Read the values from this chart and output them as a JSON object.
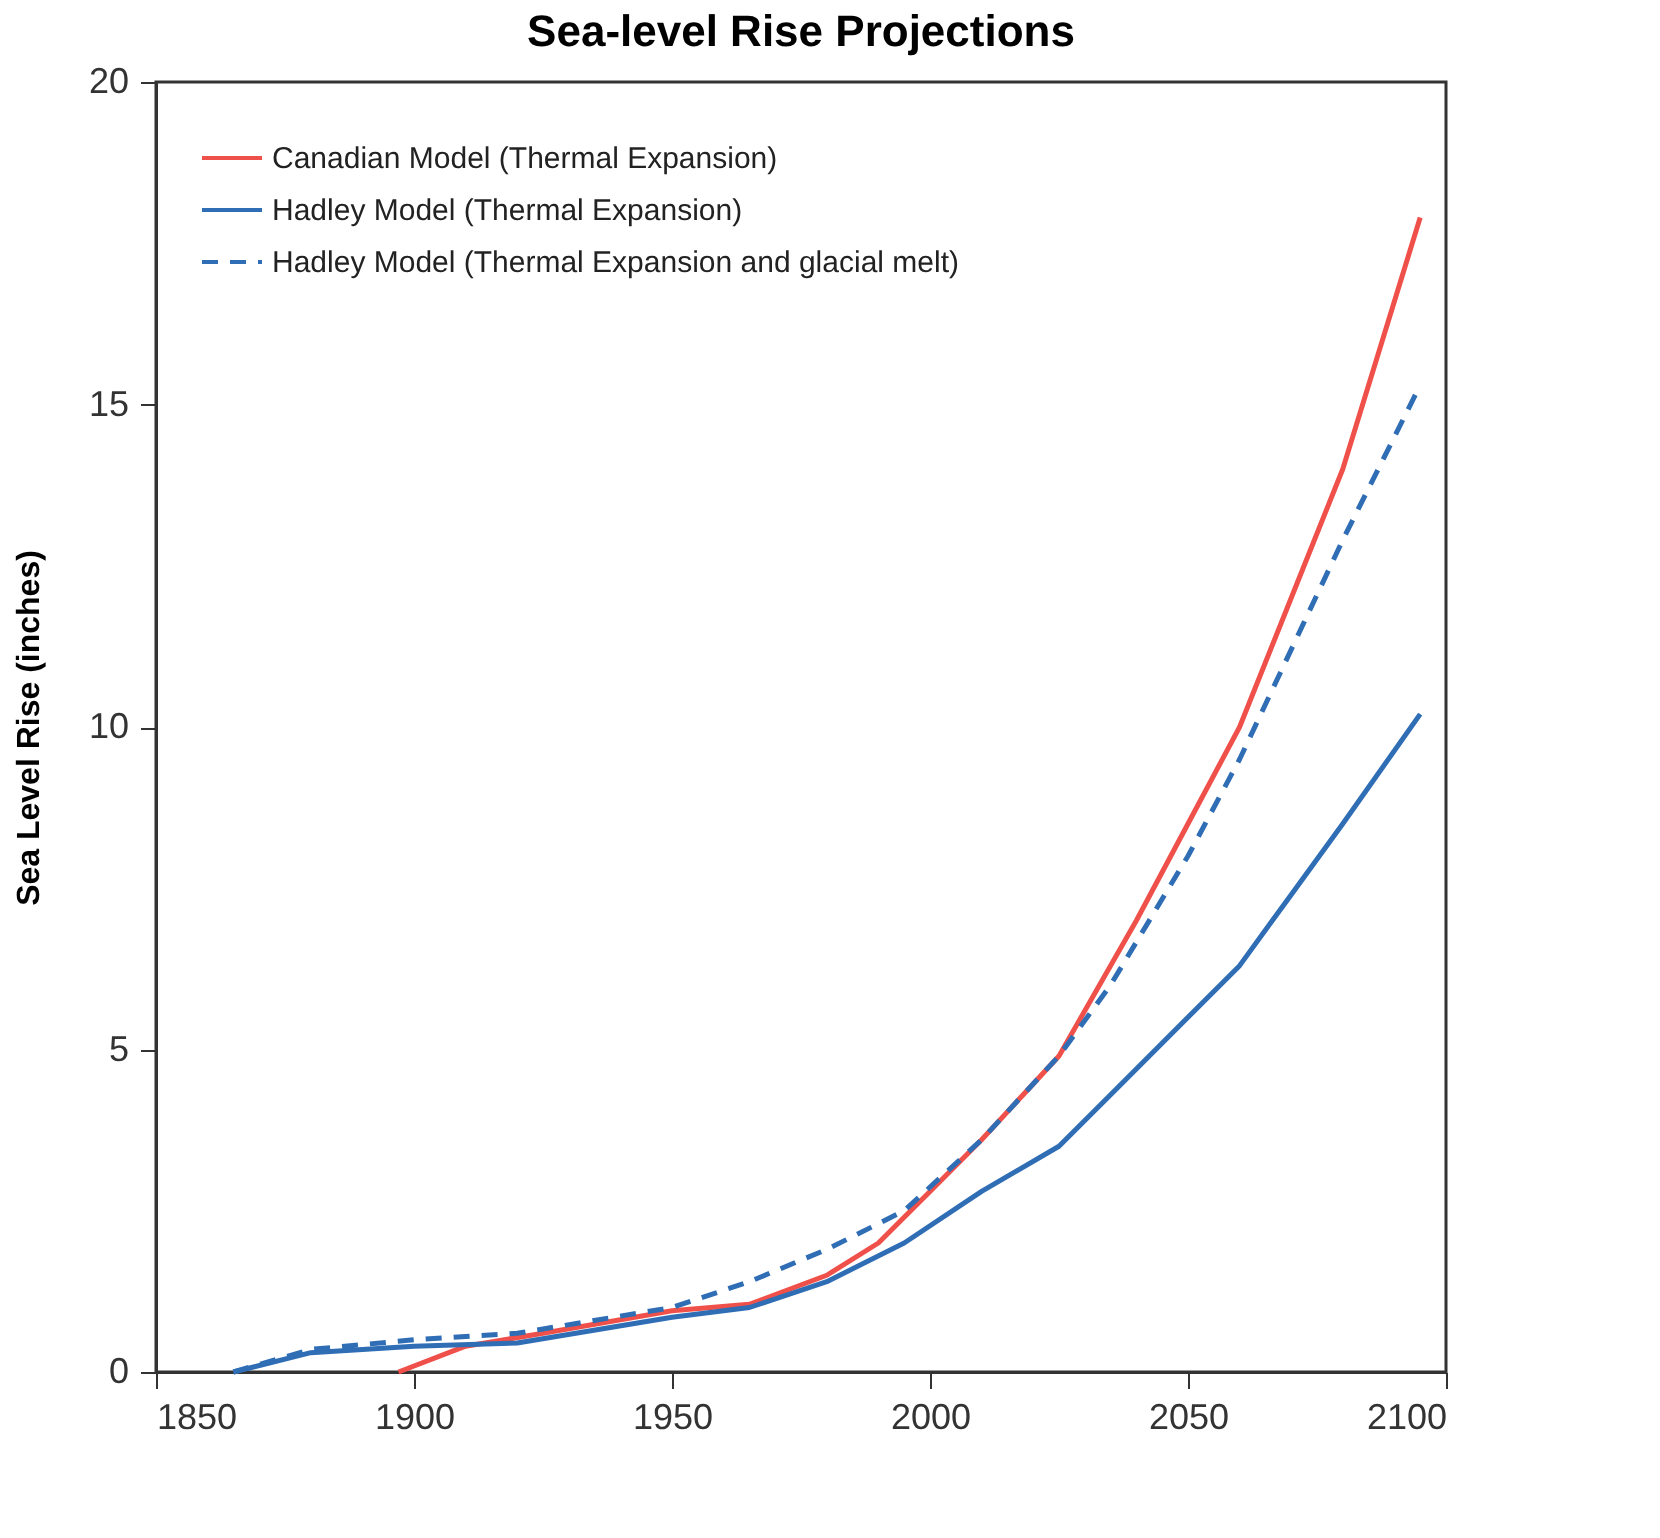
{
  "chart_data": {
    "type": "line",
    "title": "Sea-level Rise Projections",
    "ylabel": "Sea Level Rise (inches)",
    "xlim": [
      1850,
      2100
    ],
    "xticks": [
      1850,
      1900,
      1950,
      2000,
      2050,
      2100
    ],
    "ylim": [
      0,
      20
    ],
    "yticks": [
      0,
      5,
      10,
      15,
      20
    ],
    "grid": false,
    "legend": "top left",
    "marker": "none",
    "series": [
      {
        "name": "Canadian Model (Thermal Expansion)",
        "color": "#f0504a",
        "line_style": "solid",
        "x": [
          1897,
          1910,
          1925,
          1950,
          1965,
          1980,
          1990,
          2000,
          2010,
          2025,
          2040,
          2050,
          2060,
          2070,
          2080,
          2095
        ],
        "values": [
          0,
          0.4,
          0.6,
          0.95,
          1.05,
          1.5,
          2.0,
          2.8,
          3.6,
          4.9,
          7.0,
          8.5,
          10.0,
          12.0,
          14.0,
          17.9
        ]
      },
      {
        "name": "Hadley Model (Thermal Expansion)",
        "color": "#2f6db5",
        "line_style": "solid",
        "x": [
          1865,
          1880,
          1900,
          1920,
          1950,
          1965,
          1980,
          1995,
          2010,
          2025,
          2035,
          2050,
          2060,
          2070,
          2080,
          2095
        ],
        "values": [
          0,
          0.3,
          0.4,
          0.45,
          0.85,
          1.0,
          1.4,
          2.0,
          2.8,
          3.5,
          4.3,
          5.5,
          6.3,
          7.4,
          8.5,
          10.2
        ]
      },
      {
        "name": "Hadley Model (Thermal Expansion and glacial melt)",
        "color": "#2f6db5",
        "line_style": "dashed",
        "x": [
          1865,
          1880,
          1900,
          1920,
          1950,
          1965,
          1980,
          1995,
          2010,
          2025,
          2035,
          2050,
          2060,
          2070,
          2080,
          2095
        ],
        "values": [
          0,
          0.35,
          0.5,
          0.6,
          1.0,
          1.4,
          1.9,
          2.5,
          3.6,
          4.9,
          6.0,
          8.0,
          9.5,
          11.2,
          12.9,
          15.3
        ]
      }
    ]
  }
}
